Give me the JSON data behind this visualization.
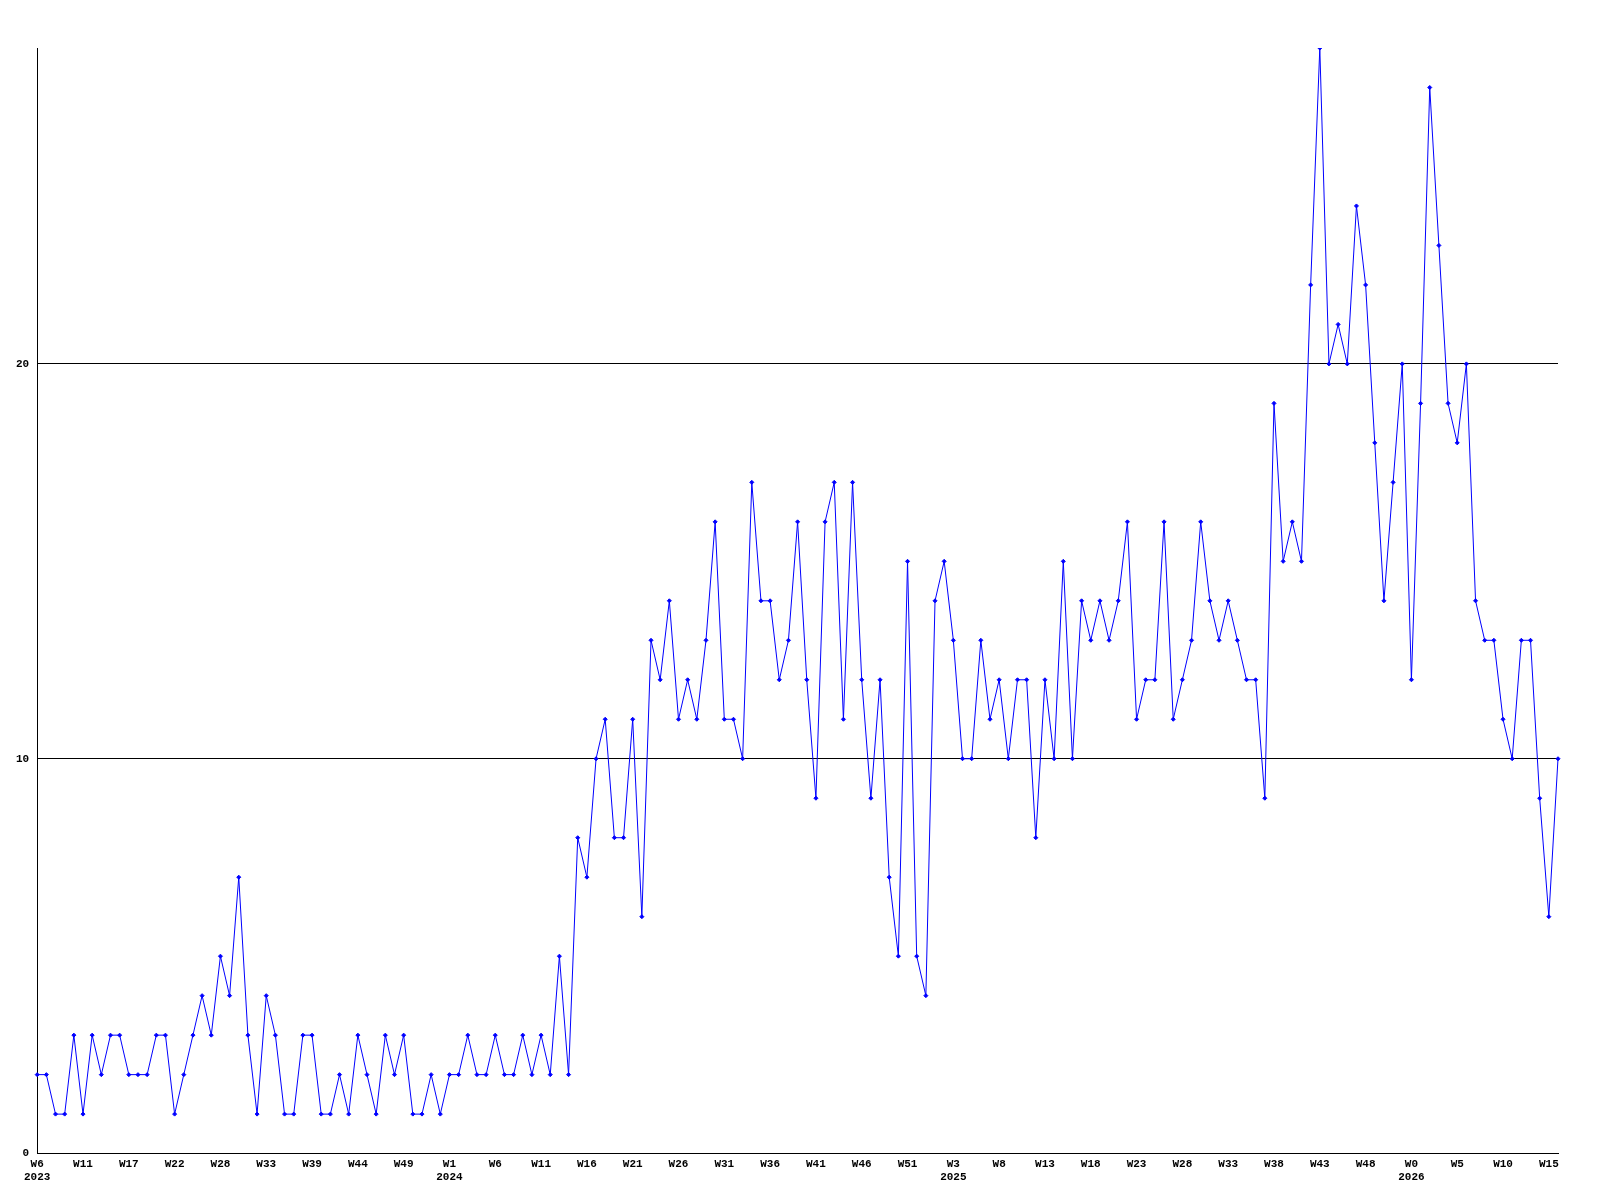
{
  "chart_data": {
    "type": "line",
    "categories": [
      "W6\n2023",
      null,
      null,
      null,
      null,
      "W11",
      null,
      null,
      null,
      null,
      "W17",
      null,
      null,
      null,
      null,
      "W22",
      null,
      null,
      null,
      null,
      "W28",
      null,
      null,
      null,
      null,
      "W33",
      null,
      null,
      null,
      null,
      "W39",
      null,
      null,
      null,
      null,
      "W44",
      null,
      null,
      null,
      null,
      "W49",
      null,
      null,
      null,
      null,
      "W1\n2024",
      null,
      null,
      null,
      null,
      "W6",
      null,
      null,
      null,
      null,
      "W11",
      null,
      null,
      null,
      null,
      "W16",
      null,
      null,
      null,
      null,
      "W21",
      null,
      null,
      null,
      null,
      "W26",
      null,
      null,
      null,
      null,
      "W31",
      null,
      null,
      null,
      null,
      "W36",
      null,
      null,
      null,
      null,
      "W41",
      null,
      null,
      null,
      null,
      "W46",
      null,
      null,
      null,
      null,
      "W51",
      null,
      null,
      null,
      null,
      "W3\n2025",
      null,
      null,
      null,
      null,
      "W8",
      null,
      null,
      null,
      null,
      "W13",
      null,
      null,
      null,
      null,
      "W18",
      null,
      null,
      null,
      null,
      "W23",
      null,
      null,
      null,
      null,
      "W28",
      null,
      null,
      null,
      null,
      "W33",
      null,
      null,
      null,
      null,
      "W38",
      null,
      null,
      null,
      null,
      "W43",
      null,
      null,
      null,
      null,
      "W48",
      null,
      null,
      null,
      null,
      "W0\n2026",
      null,
      null,
      null,
      null,
      "W5",
      null,
      null,
      null,
      null,
      "W10",
      null,
      null,
      null,
      null,
      "W15",
      null
    ],
    "series": [
      {
        "color": "#0000ff",
        "values": [
          2,
          2,
          1,
          1,
          3,
          1,
          3,
          2,
          3,
          3,
          2,
          2,
          2,
          3,
          3,
          1,
          2,
          3,
          4,
          3,
          5,
          4,
          7,
          3,
          1,
          4,
          3,
          1,
          1,
          3,
          3,
          1,
          1,
          2,
          1,
          3,
          2,
          1,
          3,
          2,
          3,
          1,
          1,
          2,
          1,
          2,
          2,
          3,
          2,
          2,
          3,
          2,
          2,
          3,
          2,
          3,
          2,
          5,
          2,
          8,
          7,
          10,
          11,
          8,
          8,
          11,
          6,
          13,
          12,
          14,
          11,
          12,
          11,
          13,
          16,
          11,
          11,
          10,
          17,
          14,
          14,
          12,
          13,
          16,
          12,
          9,
          16,
          17,
          11,
          17,
          12,
          9,
          12,
          7,
          5,
          15,
          5,
          4,
          14,
          15,
          13,
          10,
          10,
          13,
          11,
          12,
          10,
          12,
          12,
          8,
          12,
          10,
          15,
          10,
          14,
          13,
          14,
          13,
          14,
          16,
          11,
          12,
          12,
          16,
          11,
          12,
          13,
          16,
          14,
          13,
          14,
          13,
          12,
          12,
          9,
          19,
          15,
          16,
          15,
          22,
          28,
          20,
          21,
          20,
          24,
          22,
          18,
          14,
          17,
          20,
          12,
          19,
          27,
          23,
          19,
          18,
          20,
          14,
          13,
          13,
          11,
          10,
          13,
          13,
          9,
          6,
          10
        ]
      }
    ],
    "ylim": [
      0,
      28
    ],
    "yticks": [
      0,
      10,
      20
    ],
    "grid": "y",
    "legend": false,
    "marker": "diamond",
    "line_style": "solid"
  }
}
